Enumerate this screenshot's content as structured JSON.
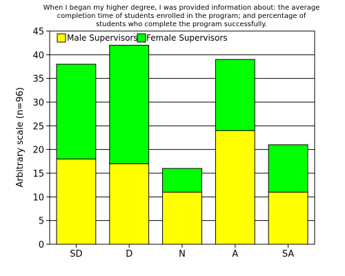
{
  "chart_data": {
    "type": "bar",
    "stacked": true,
    "title_lines": [
      "When I began my higher degree, I was provided information about: the average",
      "completion time of students enrolled in the program; and percentage of",
      "students who complete the program successfully."
    ],
    "ylabel": "Arbitrary scale (n=96)",
    "xlabel": "",
    "categories": [
      "SD",
      "D",
      "N",
      "A",
      "SA"
    ],
    "series": [
      {
        "name": "Male Supervisors",
        "values": [
          18,
          17,
          11,
          24,
          11
        ],
        "color": "#ffff00"
      },
      {
        "name": "Female Supervisors",
        "values": [
          20,
          25,
          5,
          15,
          10
        ],
        "color": "#00ff00"
      }
    ],
    "ylim": [
      0,
      45
    ],
    "y_ticks": [
      0,
      5,
      10,
      15,
      20,
      25,
      30,
      35,
      40,
      45
    ],
    "grid": "horizontal",
    "legend_position": "top-left"
  }
}
